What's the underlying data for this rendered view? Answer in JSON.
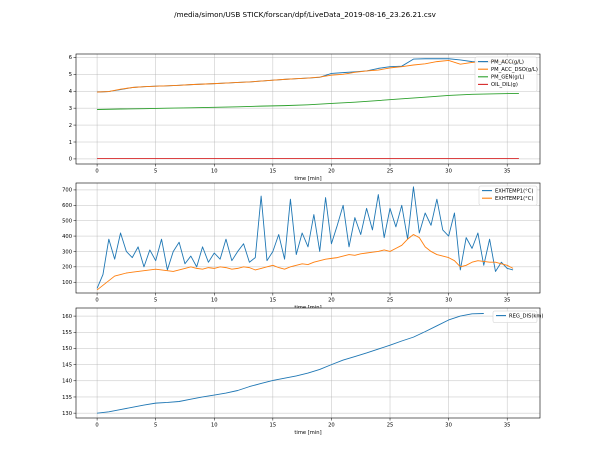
{
  "figure": {
    "title": "/media/simon/USB STICK/forscan/dpf/LiveData_2019-08-16_23.26.21.csv"
  },
  "chart_data": [
    {
      "type": "line",
      "xlabel": "time [min]",
      "ylabel": "",
      "xlim": [
        -1.8,
        37.8
      ],
      "ylim": [
        -0.3,
        6.2
      ],
      "xticks": [
        0,
        5,
        10,
        15,
        20,
        25,
        30,
        35
      ],
      "yticks": [
        0,
        1,
        2,
        3,
        4,
        5,
        6
      ],
      "grid": true,
      "legend_position": "top-right",
      "series": [
        {
          "name": "PM_ACC(g/L)",
          "color": "#1f77b4",
          "x": [
            0,
            1,
            2,
            3,
            4,
            5,
            6,
            7,
            8,
            9,
            10,
            11,
            12,
            13,
            14,
            15,
            16,
            17,
            18,
            19,
            20,
            21,
            22,
            23,
            24,
            25,
            26,
            27,
            28,
            29,
            30,
            31,
            32,
            33,
            34,
            35,
            36
          ],
          "values": [
            3.95,
            3.98,
            4.1,
            4.22,
            4.27,
            4.3,
            4.32,
            4.35,
            4.39,
            4.42,
            4.45,
            4.48,
            4.52,
            4.55,
            4.6,
            4.65,
            4.7,
            4.74,
            4.78,
            4.82,
            5.05,
            5.1,
            5.15,
            5.2,
            5.35,
            5.45,
            5.48,
            5.9,
            5.92,
            5.92,
            5.92,
            5.85,
            5.75,
            5.72,
            5.75,
            5.7,
            5.6
          ]
        },
        {
          "name": "PM_ACC_DSO(g/L)",
          "color": "#ff7f0e",
          "x": [
            0,
            1,
            2,
            3,
            4,
            5,
            6,
            7,
            8,
            9,
            10,
            11,
            12,
            13,
            14,
            15,
            16,
            17,
            18,
            19,
            20,
            21,
            22,
            23,
            24,
            25,
            26,
            27,
            28,
            29,
            30,
            31,
            32,
            33,
            34,
            35,
            36
          ],
          "values": [
            3.95,
            3.98,
            4.12,
            4.22,
            4.27,
            4.3,
            4.32,
            4.35,
            4.39,
            4.42,
            4.45,
            4.48,
            4.52,
            4.55,
            4.6,
            4.65,
            4.7,
            4.74,
            4.78,
            4.84,
            4.95,
            5.0,
            5.12,
            5.2,
            5.25,
            5.38,
            5.45,
            5.55,
            5.62,
            5.75,
            5.82,
            5.6,
            5.7,
            5.75,
            5.8,
            5.72,
            5.68
          ]
        },
        {
          "name": "PM_GEN(g/L)",
          "color": "#2ca02c",
          "x": [
            0,
            2,
            4,
            6,
            8,
            10,
            12,
            14,
            16,
            18,
            20,
            22,
            24,
            26,
            28,
            30,
            32,
            34,
            36
          ],
          "values": [
            2.92,
            2.95,
            2.97,
            3.0,
            3.02,
            3.05,
            3.08,
            3.12,
            3.15,
            3.2,
            3.28,
            3.35,
            3.45,
            3.55,
            3.65,
            3.75,
            3.82,
            3.85,
            3.87
          ]
        },
        {
          "name": "OIL_DIL(g)",
          "color": "#d62728",
          "x": [
            0,
            36
          ],
          "values": [
            0.02,
            0.02
          ]
        }
      ]
    },
    {
      "type": "line",
      "xlabel": "time [min]",
      "ylabel": "",
      "xlim": [
        -1.8,
        37.8
      ],
      "ylim": [
        30,
        745
      ],
      "xticks": [
        0,
        5,
        10,
        15,
        20,
        25,
        30,
        35
      ],
      "yticks": [
        100,
        200,
        300,
        400,
        500,
        600,
        700
      ],
      "grid": true,
      "legend_position": "top-right",
      "series": [
        {
          "name": "EXHTEMP1(°C)",
          "color": "#1f77b4",
          "x": [
            0,
            0.5,
            1,
            1.5,
            2,
            2.5,
            3,
            3.5,
            4,
            4.5,
            5,
            5.5,
            6,
            6.5,
            7,
            7.5,
            8,
            8.5,
            9,
            9.5,
            10,
            10.5,
            11,
            11.5,
            12,
            12.5,
            13,
            13.5,
            14,
            14.5,
            15,
            15.5,
            16,
            16.5,
            17,
            17.5,
            18,
            18.5,
            19,
            19.5,
            20,
            20.5,
            21,
            21.5,
            22,
            22.5,
            23,
            23.5,
            24,
            24.5,
            25,
            25.5,
            26,
            26.5,
            27,
            27.5,
            28,
            28.5,
            29,
            29.5,
            30,
            30.5,
            31,
            31.5,
            32,
            32.5,
            33,
            33.5,
            34,
            34.5,
            35,
            35.5
          ],
          "values": [
            60,
            150,
            380,
            250,
            420,
            300,
            260,
            330,
            200,
            310,
            240,
            380,
            180,
            300,
            360,
            220,
            270,
            200,
            330,
            230,
            290,
            250,
            380,
            240,
            300,
            350,
            230,
            260,
            660,
            240,
            300,
            410,
            250,
            640,
            280,
            420,
            330,
            540,
            300,
            650,
            350,
            470,
            600,
            330,
            520,
            410,
            580,
            440,
            670,
            390,
            580,
            460,
            600,
            380,
            720,
            420,
            550,
            470,
            640,
            440,
            400,
            550,
            180,
            390,
            320,
            420,
            210,
            380,
            170,
            230,
            190,
            180
          ]
        },
        {
          "name": "EXHTEMP1(°C)",
          "color": "#ff7f0e",
          "x": [
            0,
            0.5,
            1,
            1.5,
            2,
            2.5,
            3,
            3.5,
            4,
            4.5,
            5,
            5.5,
            6,
            6.5,
            7,
            7.5,
            8,
            8.5,
            9,
            9.5,
            10,
            10.5,
            11,
            11.5,
            12,
            12.5,
            13,
            13.5,
            14,
            14.5,
            15,
            15.5,
            16,
            16.5,
            17,
            17.5,
            18,
            18.5,
            19,
            19.5,
            20,
            20.5,
            21,
            21.5,
            22,
            22.5,
            23,
            23.5,
            24,
            24.5,
            25,
            25.5,
            26,
            26.5,
            27,
            27.5,
            28,
            28.5,
            29,
            29.5,
            30,
            30.5,
            31,
            31.5,
            32,
            32.5,
            33,
            33.5,
            34,
            34.5,
            35,
            35.5
          ],
          "values": [
            50,
            80,
            110,
            140,
            150,
            160,
            165,
            170,
            175,
            180,
            185,
            180,
            175,
            170,
            180,
            190,
            200,
            190,
            185,
            195,
            190,
            200,
            195,
            185,
            190,
            200,
            195,
            180,
            190,
            200,
            210,
            195,
            185,
            200,
            210,
            220,
            215,
            230,
            240,
            250,
            255,
            260,
            270,
            280,
            275,
            285,
            290,
            295,
            300,
            310,
            300,
            320,
            340,
            380,
            410,
            390,
            330,
            300,
            280,
            270,
            260,
            240,
            200,
            210,
            230,
            240,
            235,
            230,
            230,
            220,
            210,
            190
          ]
        }
      ]
    },
    {
      "type": "line",
      "xlabel": "time [min]",
      "ylabel": "",
      "xlim": [
        -1.8,
        37.8
      ],
      "ylim": [
        128.5,
        162.5
      ],
      "xticks": [
        0,
        5,
        10,
        15,
        20,
        25,
        30,
        35
      ],
      "yticks": [
        130,
        135,
        140,
        145,
        150,
        155,
        160
      ],
      "grid": true,
      "legend_position": "top-right",
      "series": [
        {
          "name": "REG_DIS(km)",
          "color": "#1f77b4",
          "x": [
            0,
            1,
            2,
            3,
            4,
            5,
            6,
            7,
            8,
            9,
            10,
            11,
            12,
            13,
            14,
            15,
            16,
            17,
            18,
            19,
            20,
            21,
            22,
            23,
            24,
            25,
            26,
            27,
            28,
            29,
            30,
            31,
            32,
            33
          ],
          "values": [
            130.0,
            130.4,
            131.1,
            131.8,
            132.5,
            133.1,
            133.3,
            133.6,
            134.3,
            135.0,
            135.6,
            136.2,
            137.0,
            138.2,
            139.2,
            140.1,
            140.8,
            141.5,
            142.4,
            143.5,
            145.0,
            146.4,
            147.5,
            148.6,
            149.8,
            151.0,
            152.3,
            153.5,
            155.2,
            157.0,
            158.8,
            160.0,
            160.7,
            160.8
          ]
        }
      ]
    }
  ]
}
